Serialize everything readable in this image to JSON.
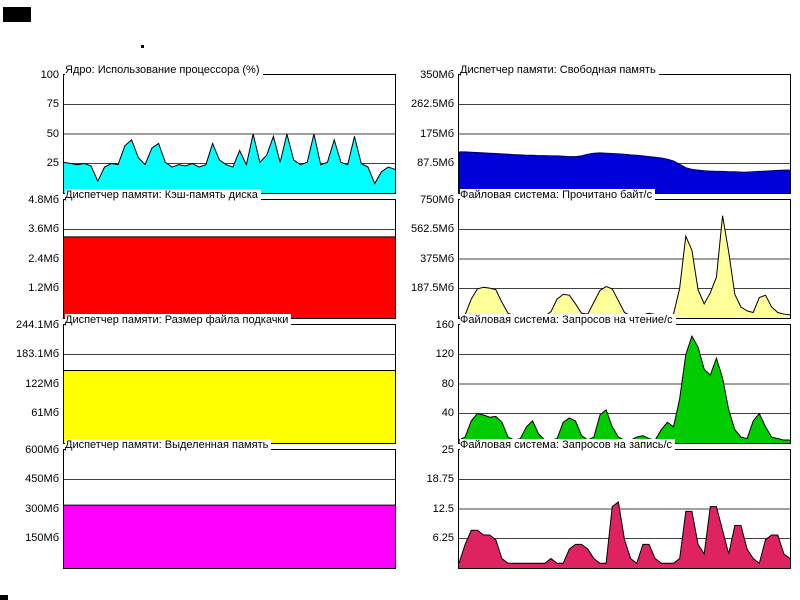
{
  "style": {
    "background": "#FFFFFF",
    "grid_color": "#404040",
    "border_color": "#000000",
    "text_color": "#000000"
  },
  "chart_data": [
    {
      "type": "area",
      "title": "Ядро: Использование процессора (%)",
      "ylim": [
        0,
        100
      ],
      "y_tick_labels": [
        "100",
        "75",
        "50",
        "25"
      ],
      "grid": "horizontal quarter lines",
      "fill": "#00FFFF",
      "stroke": "#000000",
      "values": [
        26,
        25,
        24,
        25,
        23,
        10,
        22,
        25,
        24,
        40,
        45,
        30,
        24,
        38,
        42,
        26,
        22,
        24,
        23,
        25,
        22,
        24,
        42,
        28,
        24,
        22,
        36,
        24,
        50,
        26,
        32,
        48,
        26,
        50,
        28,
        24,
        26,
        50,
        24,
        26,
        45,
        26,
        24,
        48,
        25,
        22,
        8,
        18,
        22,
        20
      ]
    },
    {
      "type": "area",
      "title": "Диспетчер памяти: Свободная память",
      "ylim": [
        0,
        350
      ],
      "y_tick_labels": [
        "350Мб",
        "262.5Мб",
        "175Мб",
        "87.5Мб"
      ],
      "grid": "horizontal quarter lines",
      "fill": "#0000D8",
      "stroke": "#000066",
      "values": [
        122,
        122,
        121,
        120,
        119,
        118,
        117,
        116,
        115,
        114,
        113,
        112,
        112,
        111,
        111,
        110,
        110,
        109,
        108,
        108,
        110,
        115,
        118,
        119,
        118,
        117,
        116,
        115,
        113,
        112,
        110,
        108,
        106,
        104,
        100,
        95,
        85,
        75,
        70,
        68,
        66,
        65,
        64,
        64,
        63,
        63,
        62,
        62,
        63,
        64,
        65,
        66,
        67,
        68,
        68
      ]
    },
    {
      "type": "area",
      "title": "Диспетчер памяти: Кэш-память диска",
      "ylim": [
        0,
        4.8
      ],
      "y_tick_labels": [
        "4.8Мб",
        "3.6Мб",
        "2.4Мб",
        "1.2Мб"
      ],
      "grid": "horizontal quarter lines",
      "fill": "#FF0000",
      "stroke": "#000000",
      "values": [
        3.3,
        3.3
      ]
    },
    {
      "type": "area",
      "title": "Файловая система: Прочитано байт/с",
      "ylim": [
        0,
        750
      ],
      "y_tick_labels": [
        "750Мб",
        "562.5Мб",
        "375Мб",
        "187.5Мб"
      ],
      "grid": "horizontal quarter lines",
      "fill": "#FFFF99",
      "stroke": "#000000",
      "values": [
        5,
        20,
        120,
        185,
        195,
        190,
        180,
        100,
        30,
        15,
        12,
        15,
        18,
        14,
        12,
        40,
        120,
        150,
        145,
        90,
        30,
        25,
        100,
        175,
        200,
        185,
        110,
        35,
        15,
        12,
        20,
        30,
        22,
        12,
        10,
        25,
        190,
        520,
        430,
        180,
        90,
        160,
        260,
        650,
        420,
        150,
        70,
        45,
        35,
        130,
        145,
        70,
        35,
        25,
        20
      ]
    },
    {
      "type": "area",
      "title": "Диспетчер памяти: Размер файла подкачки",
      "ylim": [
        0,
        244.1
      ],
      "y_tick_labels": [
        "244.1Мб",
        "183.1Мб",
        "122Мб",
        "61Мб"
      ],
      "grid": "horizontal quarter lines",
      "fill": "#FFFF00",
      "stroke": "#000000",
      "values": [
        150,
        150
      ]
    },
    {
      "type": "area",
      "title": "Файловая система: Запросов на чтение/с",
      "ylim": [
        0,
        160
      ],
      "y_tick_labels": [
        "160",
        "120",
        "80",
        "40"
      ],
      "grid": "horizontal quarter lines",
      "fill": "#00CC00",
      "stroke": "#000000",
      "values": [
        4,
        8,
        30,
        40,
        38,
        35,
        36,
        28,
        8,
        4,
        6,
        22,
        30,
        12,
        4,
        4,
        6,
        28,
        34,
        30,
        10,
        4,
        8,
        38,
        45,
        22,
        8,
        4,
        4,
        8,
        10,
        6,
        4,
        18,
        28,
        22,
        60,
        120,
        145,
        130,
        100,
        92,
        115,
        88,
        45,
        18,
        8,
        6,
        30,
        40,
        22,
        8,
        6,
        4,
        4
      ]
    },
    {
      "type": "area",
      "title": "Диспетчер памяти: Выделенная память",
      "ylim": [
        0,
        600
      ],
      "y_tick_labels": [
        "600Мб",
        "450Мб",
        "300Мб",
        "150Мб"
      ],
      "grid": "horizontal quarter lines",
      "fill": "#FF00FF",
      "stroke": "#000000",
      "values": [
        320,
        320
      ]
    },
    {
      "type": "area",
      "title": "Файловая система: Запросов на запись/с",
      "ylim": [
        0,
        25
      ],
      "y_tick_labels": [
        "25",
        "18.75",
        "12.5",
        "6.25"
      ],
      "grid": "horizontal quarter lines",
      "fill": "#DE2360",
      "stroke": "#000000",
      "values": [
        1,
        5,
        8,
        8,
        7,
        7,
        6,
        2,
        1,
        1,
        1,
        1,
        1,
        1,
        1,
        2,
        1,
        1,
        4,
        5,
        5,
        4,
        2,
        1,
        1,
        13,
        14,
        6,
        2,
        1,
        5,
        5,
        2,
        1,
        1,
        1,
        2,
        12,
        12,
        5,
        3,
        13,
        13,
        8,
        3,
        9,
        9,
        4,
        2,
        1,
        6,
        7,
        7,
        3,
        2
      ]
    }
  ]
}
